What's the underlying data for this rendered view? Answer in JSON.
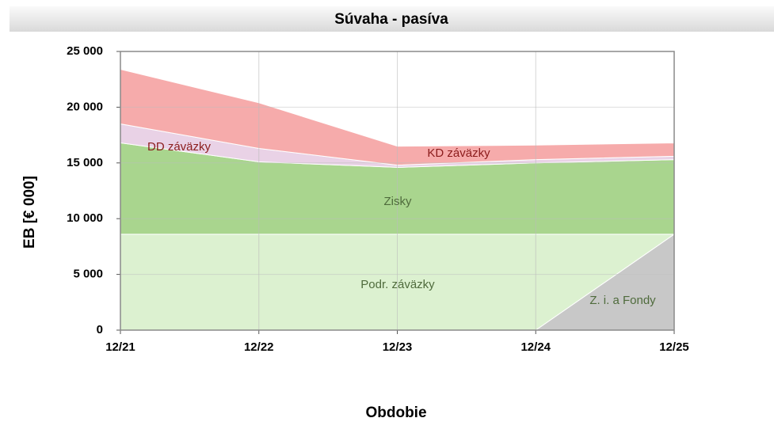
{
  "chart_data": {
    "type": "stacked-area",
    "title": "Súvaha - pasíva",
    "x_label": "Obdobie",
    "y_label": "EB [€ 000]",
    "categories": [
      "12/21",
      "12/22",
      "12/23",
      "12/24",
      "12/25"
    ],
    "series": [
      {
        "name": "Z. i. a Fondy",
        "color": "#c8c8c8",
        "values": [
          0,
          0,
          0,
          0,
          8600
        ]
      },
      {
        "name": "Podr. záväzky",
        "color": "#dcf1d0",
        "values": [
          8600,
          8600,
          8600,
          8600,
          0
        ]
      },
      {
        "name": "Zisky",
        "color": "#a9d58e",
        "values": [
          8200,
          6500,
          6000,
          6400,
          6700
        ]
      },
      {
        "name": "DD záväzky",
        "color": "#e9d2e6",
        "values": [
          1700,
          1200,
          200,
          300,
          300
        ]
      },
      {
        "name": "KD záväzky",
        "color": "#f6abab",
        "values": [
          4900,
          4100,
          1700,
          1300,
          1200
        ]
      }
    ],
    "ylim": [
      0,
      25000
    ],
    "yticks": [
      0,
      {
        "value": 5000,
        "label": "5 000"
      },
      {
        "value": 10000,
        "label": "10 000"
      },
      {
        "value": 15000,
        "label": "15 000"
      },
      {
        "value": 20000,
        "label": "20 000"
      },
      {
        "value": 25000,
        "label": "25 000"
      }
    ],
    "grid": true
  }
}
